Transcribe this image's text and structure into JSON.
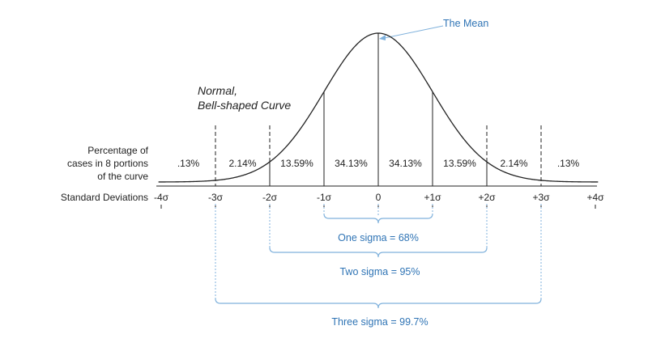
{
  "title_lines": [
    "Normal,",
    "Bell-shaped Curve"
  ],
  "mean_label": "The Mean",
  "row_label_lines": [
    "Percentage of",
    "cases in 8 portions",
    "of the curve"
  ],
  "axis_label": "Standard Deviations",
  "tick_labels": [
    "-4σ",
    "-3σ",
    "-2σ",
    "-1σ",
    "0",
    "+1σ",
    "+2σ",
    "+3σ",
    "+4σ"
  ],
  "portions": [
    ".13%",
    "2.14%",
    "13.59%",
    "34.13%",
    "34.13%",
    "13.59%",
    "2.14%",
    ".13%"
  ],
  "brackets": [
    {
      "label": "One sigma = 68%",
      "range": [
        -1,
        1
      ]
    },
    {
      "label": "Two sigma = 95%",
      "range": [
        -2,
        2
      ]
    },
    {
      "label": "Three sigma = 99.7%",
      "range": [
        -3,
        3
      ]
    }
  ],
  "colors": {
    "line": "#222222",
    "accent": "#2f74b5",
    "guide": "#7fb1dc"
  }
}
